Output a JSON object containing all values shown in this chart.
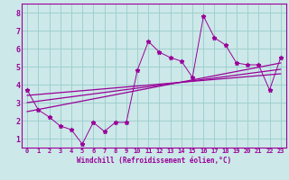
{
  "title": "",
  "xlabel": "Windchill (Refroidissement éolien,°C)",
  "ylabel": "",
  "bg_color": "#cce8e8",
  "line_color": "#990099",
  "grid_color": "#99cccc",
  "xlim": [
    -0.5,
    23.5
  ],
  "ylim": [
    0.5,
    8.5
  ],
  "xticks": [
    0,
    1,
    2,
    3,
    4,
    5,
    6,
    7,
    8,
    9,
    10,
    11,
    12,
    13,
    14,
    15,
    16,
    17,
    18,
    19,
    20,
    21,
    22,
    23
  ],
  "yticks": [
    1,
    2,
    3,
    4,
    5,
    6,
    7,
    8
  ],
  "scatter_x": [
    0,
    1,
    2,
    3,
    4,
    5,
    6,
    7,
    8,
    9,
    10,
    11,
    12,
    13,
    14,
    15,
    16,
    17,
    18,
    19,
    20,
    21,
    22,
    23
  ],
  "scatter_y": [
    3.7,
    2.6,
    2.2,
    1.7,
    1.5,
    0.7,
    1.9,
    1.4,
    1.9,
    1.9,
    4.8,
    6.4,
    5.8,
    5.5,
    5.3,
    4.4,
    7.8,
    6.6,
    6.2,
    5.2,
    5.1,
    5.1,
    3.7,
    5.5
  ],
  "reg_lines": [
    [
      [
        0,
        23
      ],
      [
        2.5,
        5.2
      ]
    ],
    [
      [
        0,
        23
      ],
      [
        3.0,
        4.85
      ]
    ],
    [
      [
        0,
        23
      ],
      [
        3.4,
        4.6
      ]
    ]
  ]
}
